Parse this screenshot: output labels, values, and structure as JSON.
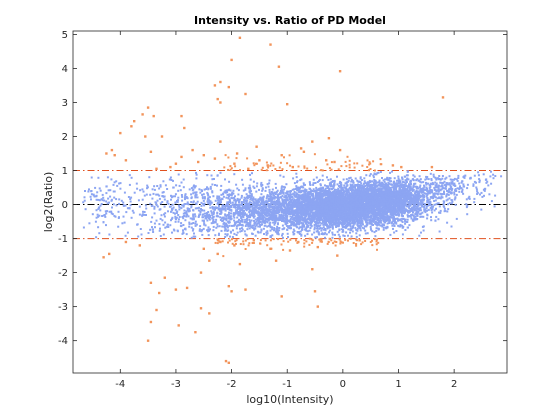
{
  "chart_data": {
    "type": "scatter",
    "title": "Intensity vs. Ratio of PD Model",
    "xlabel": "log10(Intensity)",
    "ylabel": "log2(Ratio)",
    "xlim": [
      -4.85,
      2.95
    ],
    "ylim": [
      -4.95,
      5.1
    ],
    "xticks": [
      -4,
      -3,
      -2,
      -1,
      0,
      1,
      2
    ],
    "yticks": [
      -4,
      -3,
      -2,
      -1,
      0,
      1,
      2,
      3,
      4,
      5
    ],
    "grid": false,
    "colors": {
      "non_significant": "#8ca5f2",
      "significant": "#f2945b",
      "threshold_line": "#e0501e",
      "zero_line": "#000000",
      "axes": "#262626"
    },
    "reference_lines": [
      {
        "y": 1,
        "style": "dash-dot",
        "color": "#e0501e"
      },
      {
        "y": 0,
        "style": "dash-dot",
        "color": "#000000"
      },
      {
        "y": -1,
        "style": "dash-dot",
        "color": "#e0501e"
      }
    ],
    "series": [
      {
        "color": "#f2945b",
        "points": [
          [
            -1.85,
            4.9
          ],
          [
            -1.3,
            4.7
          ],
          [
            -2.0,
            4.25
          ],
          [
            -1.15,
            4.05
          ],
          [
            -0.05,
            3.92
          ],
          [
            -2.2,
            3.6
          ],
          [
            -2.3,
            3.5
          ],
          [
            -2.05,
            3.45
          ],
          [
            -2.25,
            3.1
          ],
          [
            -2.2,
            3.0
          ],
          [
            -1.75,
            3.25
          ],
          [
            -1.0,
            2.95
          ],
          [
            -3.5,
            2.85
          ],
          [
            -3.6,
            2.65
          ],
          [
            -3.4,
            2.6
          ],
          [
            -3.75,
            2.45
          ],
          [
            -2.9,
            2.6
          ],
          [
            -3.8,
            2.3
          ],
          [
            -2.85,
            2.25
          ],
          [
            -4.0,
            2.1
          ],
          [
            -3.55,
            2.0
          ],
          [
            -3.25,
            2.0
          ],
          [
            -2.2,
            1.85
          ],
          [
            -1.55,
            1.7
          ],
          [
            -0.25,
            1.95
          ],
          [
            -0.55,
            1.85
          ],
          [
            -0.05,
            1.6
          ],
          [
            -4.15,
            1.6
          ],
          [
            -4.25,
            1.5
          ],
          [
            -3.45,
            1.55
          ],
          [
            -2.5,
            1.45
          ],
          [
            -2.3,
            1.35
          ],
          [
            -1.1,
            1.45
          ],
          [
            -0.7,
            1.55
          ],
          [
            -3.0,
            1.2
          ],
          [
            -2.6,
            1.25
          ],
          [
            1.8,
            3.15
          ],
          [
            1.6,
            1.1
          ],
          [
            1.05,
            1.1
          ],
          [
            0.9,
            1.15
          ],
          [
            -0.9,
            1.1
          ],
          [
            -1.35,
            1.15
          ],
          [
            -1.95,
            1.2
          ],
          [
            -3.1,
            1.1
          ],
          [
            -3.9,
            1.3
          ],
          [
            -4.1,
            1.45
          ],
          [
            -2.7,
            1.6
          ],
          [
            -0.3,
            1.3
          ],
          [
            -0.15,
            1.25
          ],
          [
            -1.5,
            1.3
          ],
          [
            -2.2,
            -1.1
          ],
          [
            -2.5,
            -1.3
          ],
          [
            -2.25,
            -1.45
          ],
          [
            -1.95,
            -1.2
          ],
          [
            -1.3,
            -1.3
          ],
          [
            -0.95,
            -1.35
          ],
          [
            -0.45,
            -1.25
          ],
          [
            -0.1,
            -1.5
          ],
          [
            -4.2,
            -1.45
          ],
          [
            -4.3,
            -1.55
          ],
          [
            -2.4,
            -1.65
          ],
          [
            -1.85,
            -1.75
          ],
          [
            -1.2,
            -1.65
          ],
          [
            -0.55,
            -1.9
          ],
          [
            -2.55,
            -2.0
          ],
          [
            -3.45,
            -2.3
          ],
          [
            -3.2,
            -2.15
          ],
          [
            -2.05,
            -2.4
          ],
          [
            -1.75,
            -2.5
          ],
          [
            -2.0,
            -2.55
          ],
          [
            -3.0,
            -2.5
          ],
          [
            -3.3,
            -2.6
          ],
          [
            -2.8,
            -2.45
          ],
          [
            -1.1,
            -2.7
          ],
          [
            -0.5,
            -2.55
          ],
          [
            -0.45,
            -3.0
          ],
          [
            -2.55,
            -3.05
          ],
          [
            -2.4,
            -3.2
          ],
          [
            -3.35,
            -3.1
          ],
          [
            -3.45,
            -3.45
          ],
          [
            -2.95,
            -3.55
          ],
          [
            -2.65,
            -3.75
          ],
          [
            -3.5,
            -4.0
          ],
          [
            -2.1,
            -4.6
          ],
          [
            -2.05,
            -4.65
          ],
          [
            -3.65,
            -1.2
          ],
          [
            -3.9,
            -1.1
          ],
          [
            -1.6,
            -1.05
          ],
          [
            -0.8,
            -1.1
          ],
          [
            0.3,
            -1.05
          ],
          [
            -1.7,
            1.05
          ],
          [
            -2.9,
            1.4
          ],
          [
            -3.35,
            1.05
          ],
          [
            -0.75,
            1.65
          ],
          [
            -1.9,
            1.5
          ]
        ]
      }
    ]
  }
}
